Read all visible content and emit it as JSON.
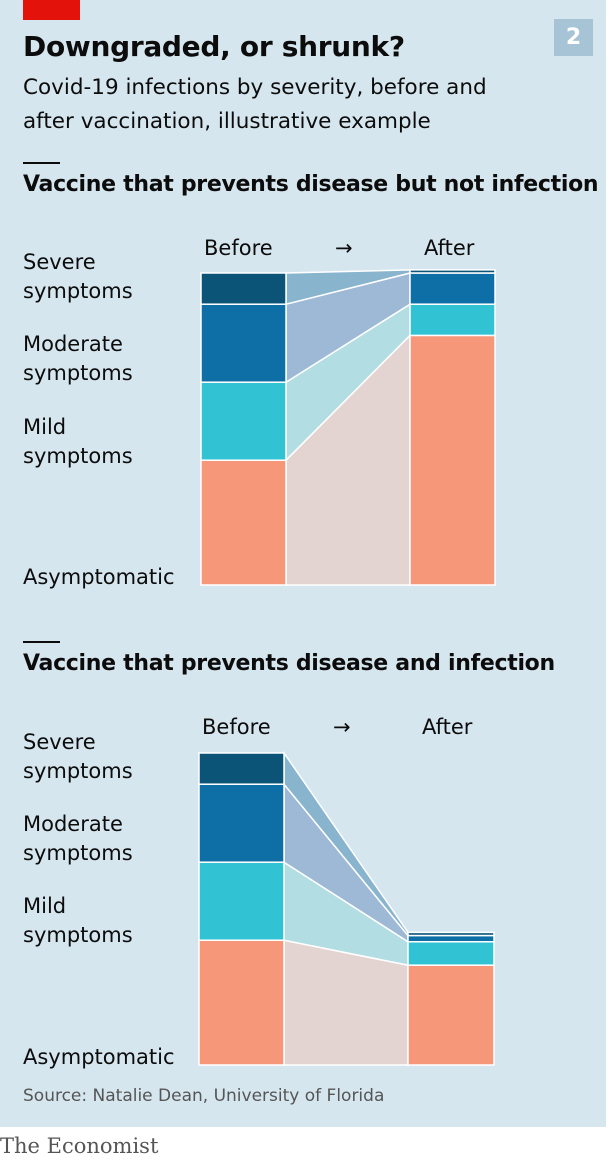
{
  "header": {
    "title": "Downgraded, or shrunk?",
    "subtitle_lines": [
      "Covid-19 infections by severity, before and",
      "after vaccination, illustrative example"
    ],
    "badge": "2"
  },
  "legend_labels": {
    "severe": "Severe\nsymptoms",
    "moderate": "Moderate\nsymptoms",
    "mild": "Mild\nsymptoms",
    "asymptomatic": "Asymptomatic"
  },
  "colors": {
    "severe": "#0b5478",
    "moderate": "#0d6fa6",
    "mild": "#31c2d4",
    "asymptomatic": "#f6977a",
    "flow_severe": "#88b4cd",
    "flow_moderate": "#9db9d6",
    "flow_mild": "#b1dde3",
    "flow_asymptomatic": "#e3d3d1"
  },
  "chart_data": [
    {
      "type": "stacked-bar-flow",
      "title": "Vaccine that prevents disease but not infection",
      "before_label": "Before",
      "arrow": "→",
      "after_label": "After",
      "categories": [
        "Asymptomatic",
        "Mild symptoms",
        "Moderate symptoms",
        "Severe symptoms"
      ],
      "before": [
        40,
        25,
        25,
        10
      ],
      "after": [
        80,
        10,
        10,
        1
      ]
    },
    {
      "type": "stacked-bar-flow",
      "title": "Vaccine that prevents disease and infection",
      "before_label": "Before",
      "arrow": "→",
      "after_label": "After",
      "categories": [
        "Asymptomatic",
        "Mild symptoms",
        "Moderate symptoms",
        "Severe symptoms"
      ],
      "before": [
        40,
        25,
        25,
        10
      ],
      "after": [
        32,
        7.5,
        2,
        1
      ]
    }
  ],
  "footer": {
    "source": "Source: Natalie Dean, University of Florida",
    "brand": "The Economist"
  }
}
